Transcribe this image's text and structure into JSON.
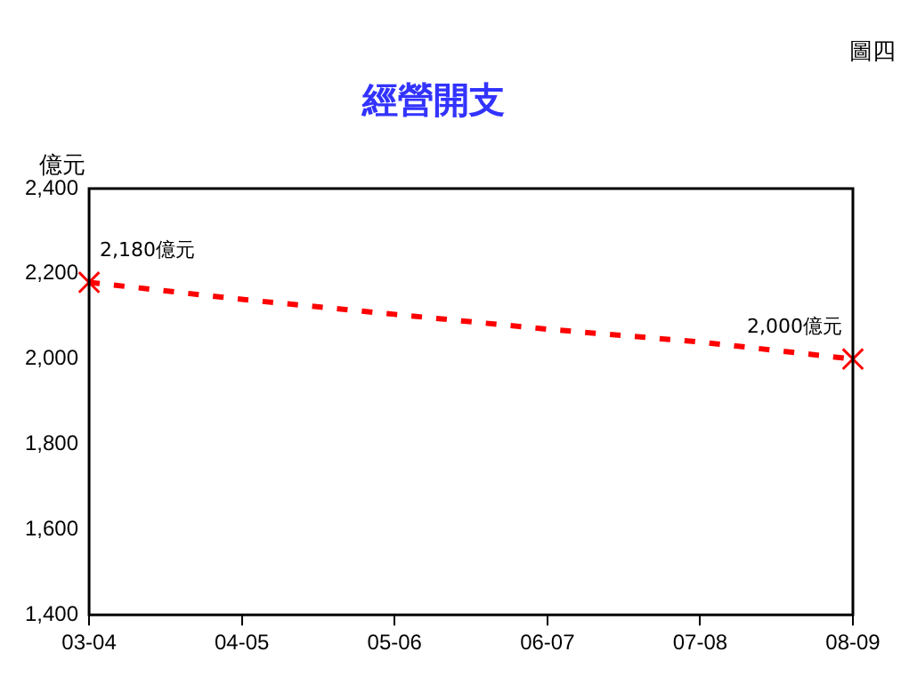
{
  "chart_data": {
    "type": "line",
    "title": "經營開支",
    "ylabel": "億元",
    "annotations": [
      "圖四"
    ],
    "categories": [
      "03-04",
      "04-05",
      "05-06",
      "06-07",
      "07-08",
      "08-09"
    ],
    "series": [
      {
        "type": "line",
        "color": "#ff0000",
        "values": [
          2180,
          2140,
          2105,
          2070,
          2040,
          2000
        ],
        "line_style": "dashed",
        "marker": "none"
      },
      {
        "type": "scatter",
        "color": "#ff0000",
        "x": [
          "03-04",
          "08-09"
        ],
        "values": [
          2180,
          2000
        ],
        "marker": "cross",
        "value_labels": [
          "2,180億元",
          "2,000億元"
        ]
      }
    ],
    "ylim": [
      1400,
      2400
    ],
    "yticks": [
      {
        "value": 1400,
        "label": "1,400"
      },
      {
        "value": 1600,
        "label": "1,600"
      },
      {
        "value": 1800,
        "label": "1,800"
      },
      {
        "value": 2000,
        "label": "2,000"
      },
      {
        "value": 2200,
        "label": "2,200"
      },
      {
        "value": 2400,
        "label": "2,400"
      }
    ],
    "grid": false,
    "legend": false
  }
}
